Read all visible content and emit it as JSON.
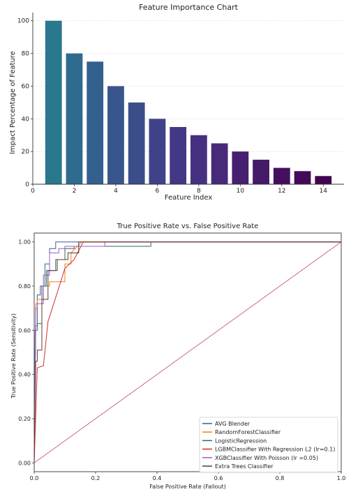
{
  "chart_data": [
    {
      "type": "bar",
      "title": "Feature Importance Chart",
      "xlabel": "Feature Index",
      "ylabel": "Impact Percentage of Feature",
      "categories": [
        1,
        2,
        3,
        4,
        5,
        6,
        7,
        8,
        9,
        10,
        11,
        12,
        13,
        14
      ],
      "values": [
        100,
        80,
        75,
        60,
        50,
        40,
        35,
        30,
        25,
        20,
        15,
        10,
        8,
        5
      ],
      "xlim": [
        0,
        15
      ],
      "ylim": [
        0,
        105
      ],
      "xticks": [
        0,
        2,
        4,
        6,
        8,
        10,
        12,
        14
      ],
      "yticks": [
        0,
        20,
        40,
        60,
        80,
        100
      ],
      "grid": true,
      "colors": [
        "#2a788e",
        "#2e6b8e",
        "#33608d",
        "#38568b",
        "#3b4e8b",
        "#404289",
        "#433886",
        "#463082",
        "#472a7a",
        "#461f70",
        "#451a68",
        "#440f5f",
        "#430a57",
        "#42034f"
      ]
    },
    {
      "type": "line",
      "title": "True Positive Rate vs. False Positive Rate",
      "xlabel": "False Positive Rate (Fallout)",
      "ylabel": "True Positive Rate (Sensitivity)",
      "xlim": [
        0,
        1
      ],
      "ylim": [
        -0.04,
        1.04
      ],
      "xticks": [
        "0.0",
        "0.2",
        "0.4",
        "0.6",
        "0.8",
        "1.0"
      ],
      "yticks": [
        "0.00",
        "0.20",
        "0.40",
        "0.60",
        "0.80",
        "1.00"
      ],
      "legend_position": "bottom-right",
      "series": [
        {
          "name": "AVG Blender",
          "color": "#3b5b9a",
          "x": [
            0,
            0.003,
            0.01,
            0.01,
            0.02,
            0.02,
            0.035,
            0.035,
            0.05,
            0.05,
            0.07,
            0.07,
            0.11,
            1.0
          ],
          "y": [
            0,
            0.6,
            0.6,
            0.76,
            0.76,
            0.8,
            0.8,
            0.9,
            0.9,
            0.97,
            0.97,
            1.0,
            1.0,
            1.0
          ]
        },
        {
          "name": "RandomForestClassifier",
          "color": "#f07f1e",
          "x": [
            0,
            0.005,
            0.01,
            0.01,
            0.03,
            0.03,
            0.05,
            0.05,
            0.1,
            0.1,
            0.12,
            0.12,
            0.155,
            1.0
          ],
          "y": [
            0,
            0.72,
            0.72,
            0.74,
            0.74,
            0.8,
            0.8,
            0.82,
            0.82,
            0.9,
            0.9,
            0.95,
            1.0,
            1.0
          ]
        },
        {
          "name": "LogisticRegression",
          "color": "#2e6b5c",
          "x": [
            0,
            0.005,
            0.01,
            0.01,
            0.025,
            0.025,
            0.04,
            0.04,
            0.07,
            0.07,
            0.1,
            0.1,
            0.13,
            0.13,
            0.38,
            0.38,
            1.0
          ],
          "y": [
            0,
            0.62,
            0.62,
            0.63,
            0.63,
            0.8,
            0.8,
            0.87,
            0.87,
            0.92,
            0.92,
            0.97,
            0.97,
            0.98,
            0.98,
            1.0,
            1.0
          ]
        },
        {
          "name": "LGBMClassifier With Regression L2 (lr=0.1)",
          "color": "#d12b2b",
          "x": [
            0,
            0.01,
            0.01,
            0.03,
            0.03,
            0.045,
            0.045,
            0.075,
            0.075,
            0.1,
            0.1,
            0.13,
            0.13,
            0.16,
            1.0
          ],
          "y": [
            0,
            0.43,
            0.43,
            0.44,
            0.44,
            0.64,
            0.64,
            0.77,
            0.77,
            0.88,
            0.88,
            0.92,
            0.92,
            1.0,
            1.0
          ]
        },
        {
          "name": "XGBClassifier With Poisson (lr =0.05)",
          "color": "#9a5cc8",
          "x": [
            0,
            0.005,
            0.01,
            0.01,
            0.03,
            0.03,
            0.05,
            0.05,
            0.08,
            0.08,
            0.1,
            0.1,
            0.23,
            0.23,
            1.0
          ],
          "y": [
            0,
            0.7,
            0.7,
            0.72,
            0.72,
            0.85,
            0.85,
            0.95,
            0.95,
            0.97,
            0.97,
            0.98,
            0.98,
            1.0,
            1.0
          ]
        },
        {
          "name": "Extra Trees Classifier",
          "color": "#5b3a2a",
          "x": [
            0,
            0.005,
            0.01,
            0.01,
            0.025,
            0.025,
            0.045,
            0.045,
            0.075,
            0.075,
            0.11,
            0.11,
            0.145,
            0.145,
            1.0
          ],
          "y": [
            0,
            0.46,
            0.46,
            0.51,
            0.51,
            0.74,
            0.74,
            0.87,
            0.87,
            0.92,
            0.92,
            0.95,
            0.95,
            1.0,
            1.0
          ]
        }
      ],
      "reference_line": {
        "x": [
          0,
          1
        ],
        "y": [
          0,
          1
        ],
        "color": "#c45a8a"
      }
    }
  ]
}
